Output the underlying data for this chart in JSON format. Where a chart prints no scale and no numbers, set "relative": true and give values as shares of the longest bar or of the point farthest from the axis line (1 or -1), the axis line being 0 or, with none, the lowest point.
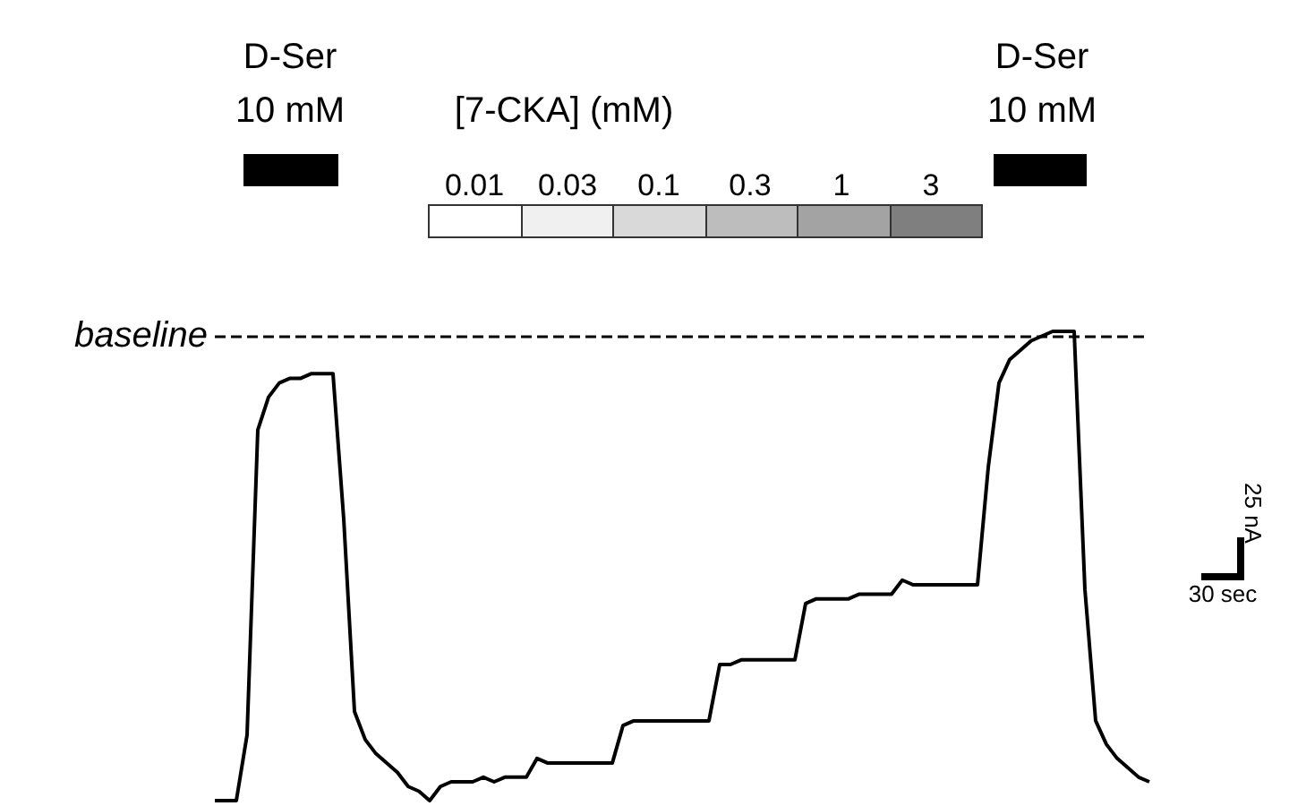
{
  "chart_data": {
    "type": "line",
    "relative": true,
    "color": "#000000",
    "line_style": "solid",
    "grid": false,
    "categories": [
      null,
      null,
      null,
      null,
      null,
      null,
      null,
      null,
      null,
      null,
      null,
      null,
      null,
      null,
      null,
      null,
      null,
      null,
      null,
      null,
      null,
      null,
      null,
      null,
      null,
      null,
      null,
      null,
      null,
      null,
      null,
      null,
      null,
      null,
      null,
      null,
      null,
      null,
      null,
      null,
      null,
      null,
      null,
      null,
      null,
      null,
      null,
      null,
      null,
      null,
      null,
      null,
      null,
      null,
      null,
      null,
      null,
      null,
      null,
      null,
      null,
      null,
      null,
      null,
      null,
      null,
      null,
      null,
      null,
      null,
      null,
      null,
      null,
      null,
      null,
      null,
      null,
      null,
      null,
      null,
      null,
      null,
      null,
      null,
      null,
      null,
      null,
      null
    ],
    "values": [
      0,
      0,
      0,
      0.14,
      0.79,
      0.86,
      0.89,
      0.9,
      0.9,
      0.91,
      0.91,
      0.91,
      0.6,
      0.19,
      0.13,
      0.1,
      0.08,
      0.06,
      0.03,
      0.02,
      0.0,
      0.03,
      0.04,
      0.04,
      0.04,
      0.05,
      0.04,
      0.05,
      0.05,
      0.05,
      0.09,
      0.08,
      0.08,
      0.08,
      0.08,
      0.08,
      0.08,
      0.08,
      0.16,
      0.17,
      0.17,
      0.17,
      0.17,
      0.17,
      0.17,
      0.17,
      0.17,
      0.29,
      0.29,
      0.3,
      0.3,
      0.3,
      0.3,
      0.3,
      0.3,
      0.42,
      0.43,
      0.43,
      0.43,
      0.43,
      0.44,
      0.44,
      0.44,
      0.44,
      0.47,
      0.46,
      0.46,
      0.46,
      0.46,
      0.46,
      0.46,
      0.46,
      0.71,
      0.89,
      0.94,
      0.96,
      0.98,
      0.99,
      1.0,
      1.0,
      1.0,
      0.45,
      0.17,
      0.12,
      0.09,
      0.07,
      0.05,
      0.04
    ],
    "ref_lines": [
      {
        "axis": "y",
        "value": 0.99,
        "label": "baseline",
        "line_style": "dashed",
        "color": "#000000"
      }
    ],
    "annotations": [
      "D-Ser",
      "10 mM",
      "[7-CKA] (mM)",
      "0.01",
      "0.03",
      "0.1",
      "0.3",
      "1",
      "3",
      "D-Ser",
      "10 mM",
      "25 nA",
      "30 sec"
    ]
  }
}
